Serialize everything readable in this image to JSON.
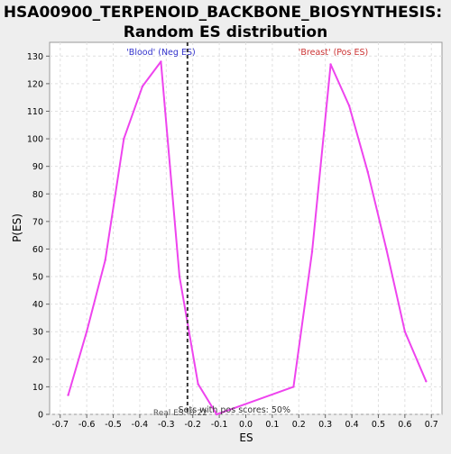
{
  "chart_data": {
    "type": "line",
    "title_line1": "HSA00900_TERPENOID_BACKBONE_BIOSYNTHESIS:",
    "title_line2": "Random ES distribution",
    "xlabel": "ES",
    "ylabel": "P(ES)",
    "xlim": [
      -0.74,
      0.74
    ],
    "ylim": [
      0,
      135
    ],
    "x_ticks": [
      -0.7,
      -0.6,
      -0.5,
      -0.4,
      -0.3,
      -0.2,
      -0.1,
      0.0,
      0.1,
      0.2,
      0.3,
      0.4,
      0.5,
      0.6,
      0.7
    ],
    "x_tick_labels": [
      "-0.7",
      "-0.6",
      "-0.5",
      "-0.4",
      "-0.3",
      "-0.2",
      "-0.1",
      "0.0",
      "0.1",
      "0.2",
      "0.3",
      "0.4",
      "0.5",
      "0.6",
      "0.7"
    ],
    "y_ticks": [
      0,
      10,
      20,
      30,
      40,
      50,
      60,
      70,
      80,
      90,
      100,
      110,
      120,
      130
    ],
    "y_tick_labels": [
      "0",
      "10",
      "20",
      "30",
      "40",
      "50",
      "60",
      "70",
      "80",
      "90",
      "100",
      "110",
      "120",
      "130"
    ],
    "grid": true,
    "series": [
      {
        "color": "#ee44ee",
        "x": [
          -0.67,
          -0.6,
          -0.53,
          -0.46,
          -0.39,
          -0.32,
          -0.25,
          -0.18,
          -0.11,
          0.18,
          0.25,
          0.32,
          0.39,
          0.46,
          0.53,
          0.6,
          0.68
        ],
        "y": [
          7,
          30,
          56,
          100,
          119,
          128,
          50,
          11,
          0,
          10,
          59,
          127,
          112,
          88,
          60,
          30,
          12
        ]
      }
    ],
    "real_es": {
      "value": -0.22,
      "label": "Real ES:-0.22",
      "color": "#333333"
    },
    "annotations": {
      "neg_label": "'Blood' (Neg ES)",
      "neg_color": "#3333cc",
      "pos_label": "'Breast' (Pos ES)",
      "pos_color": "#cc3333",
      "pos_scores_text": "Sets with pos scores: 50%"
    }
  }
}
